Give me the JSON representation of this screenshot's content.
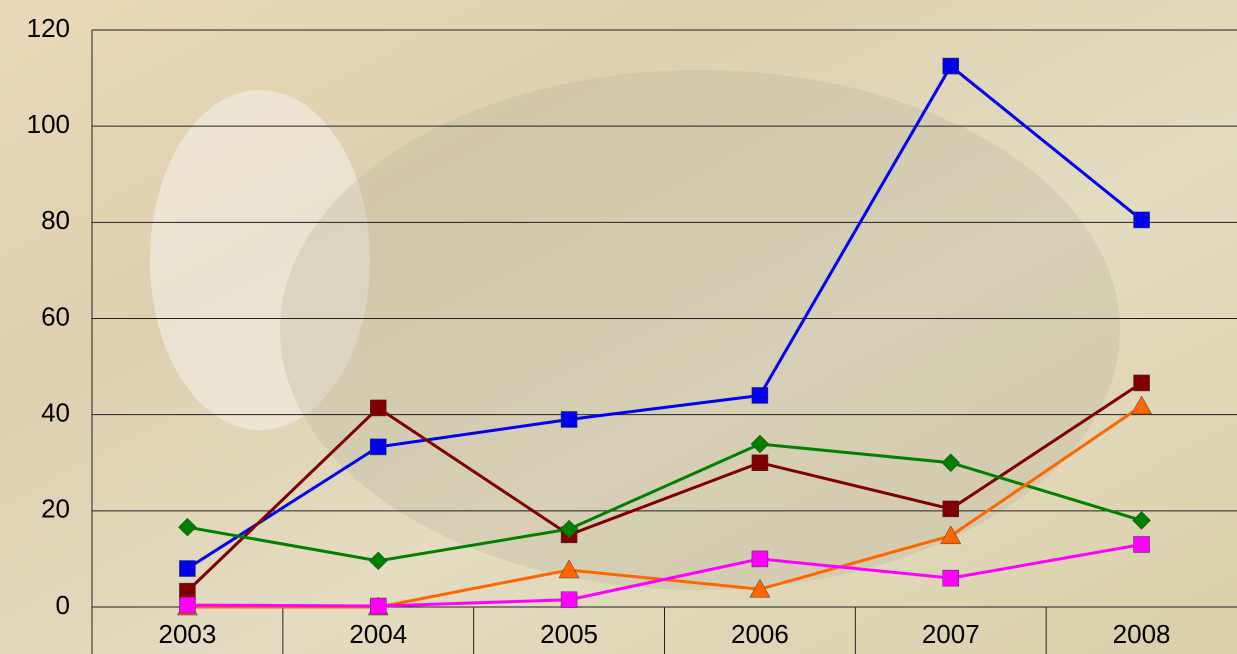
{
  "chart_data": {
    "type": "line",
    "categories": [
      "2003",
      "2004",
      "2005",
      "2006",
      "2007",
      "2008"
    ],
    "series": [
      {
        "color": "#0000ee",
        "marker": "square",
        "values": [
          8,
          33.3,
          39,
          44,
          112.5,
          80.5
        ]
      },
      {
        "color": "#800000",
        "marker": "square",
        "values": [
          3.3,
          41.4,
          15,
          30,
          20.4,
          46.6
        ]
      },
      {
        "color": "#008000",
        "marker": "diamond",
        "values": [
          16.6,
          9.6,
          16.2,
          33.9,
          30,
          18
        ]
      },
      {
        "color": "#ff6600",
        "marker": "triangle",
        "values": [
          0,
          0,
          7.7,
          3.7,
          14.8,
          41.8
        ]
      },
      {
        "color": "#ff00ff",
        "marker": "square",
        "values": [
          0.4,
          0.2,
          1.5,
          10,
          6,
          13
        ]
      }
    ],
    "ylim": [
      0,
      120
    ],
    "yticks": [
      0,
      20,
      40,
      60,
      80,
      100,
      120
    ],
    "grid": true
  }
}
